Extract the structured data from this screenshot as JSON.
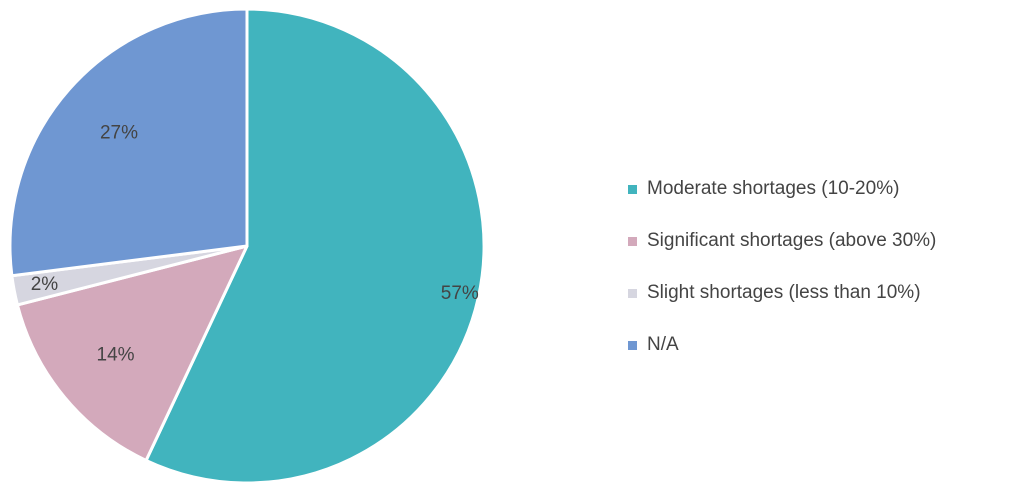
{
  "chart_data": {
    "type": "pie",
    "title": "",
    "slices": [
      {
        "name": "Moderate shortages (10-20%)",
        "value": 57,
        "label": "57%",
        "color": "#41b4be"
      },
      {
        "name": "Significant shortages (above 30%)",
        "value": 14,
        "label": "14%",
        "color": "#d3a9bb"
      },
      {
        "name": "Slight shortages (less than 10%)",
        "value": 2,
        "label": "2%",
        "color": "#d6d6e0"
      },
      {
        "name": "N/A",
        "value": 27,
        "label": "27%",
        "color": "#6f97d2"
      }
    ],
    "legend_position": "right"
  }
}
